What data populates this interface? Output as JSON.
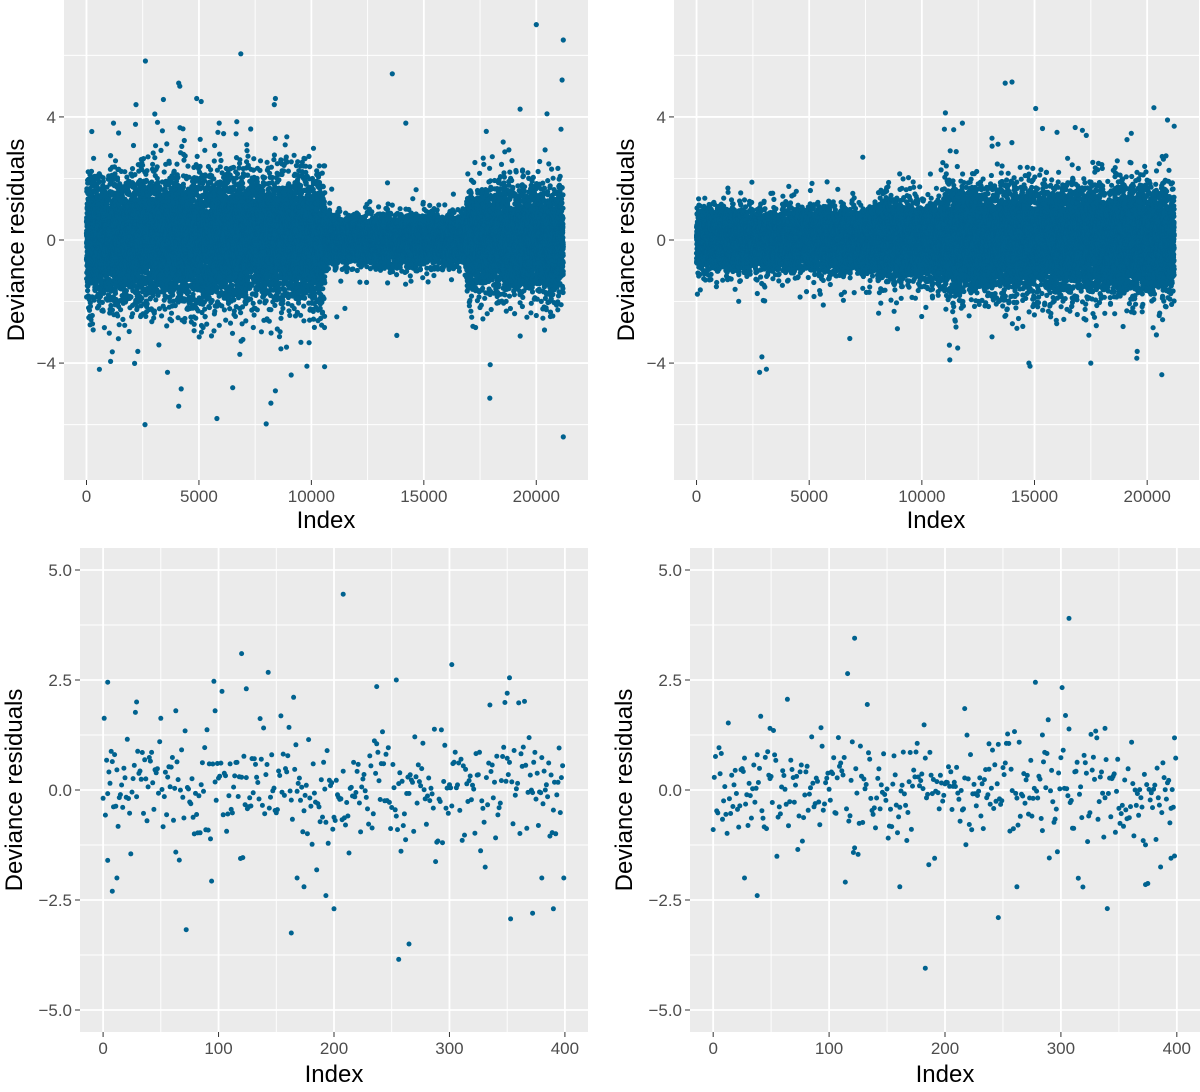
{
  "colors": {
    "panel_bg": "#ebebeb",
    "grid": "#ffffff",
    "points": "#00628f",
    "tick_text": "#4d4d4d"
  },
  "chart_data": [
    {
      "type": "scatter",
      "title": "",
      "xlabel": "Index",
      "ylabel": "Deviance residuals",
      "xlim": [
        -1000,
        22300
      ],
      "ylim": [
        -7.8,
        7.8
      ],
      "xticks": [
        0,
        5000,
        10000,
        15000,
        20000
      ],
      "xtick_labels": [
        "0",
        "5000",
        "10000",
        "15000",
        "20000"
      ],
      "yticks": [
        -4,
        0,
        4
      ],
      "ytick_labels": [
        "−4",
        "0",
        "4"
      ],
      "grid": true,
      "n_points": 21200,
      "spread_profile": [
        {
          "x_from": 0,
          "x_to": 10600,
          "core_sd": 0.95,
          "typical_range": [
            -3.5,
            3.5
          ]
        },
        {
          "x_from": 10600,
          "x_to": 16900,
          "core_sd": 0.35,
          "typical_range": [
            -1.5,
            1.5
          ]
        },
        {
          "x_from": 16900,
          "x_to": 21200,
          "core_sd": 0.8,
          "typical_range": [
            -3,
            3
          ]
        }
      ],
      "series": [
        {
          "x": [
            20000,
            21200,
            21150,
            13600,
            4100,
            4150,
            4900,
            8400,
            8350,
            2200,
            5100,
            5900,
            1200,
            14200,
            21100,
            2600,
            4100,
            5800,
            21200,
            8200,
            8400,
            13800,
            6500,
            9800,
            3600
          ],
          "y": [
            7.0,
            6.5,
            5.2,
            5.4,
            5.1,
            5.0,
            4.6,
            4.6,
            4.4,
            4.4,
            4.5,
            3.8,
            3.8,
            3.8,
            3.6,
            -6.0,
            -5.4,
            -5.8,
            -6.4,
            -5.3,
            -4.9,
            -3.1,
            -4.8,
            -4.1,
            -4.3
          ]
        }
      ]
    },
    {
      "type": "scatter",
      "title": "",
      "xlabel": "Index",
      "ylabel": "Deviance residuals",
      "xlim": [
        -1000,
        22300
      ],
      "ylim": [
        -7.8,
        7.8
      ],
      "xticks": [
        0,
        5000,
        10000,
        15000,
        20000
      ],
      "xtick_labels": [
        "0",
        "5000",
        "10000",
        "15000",
        "20000"
      ],
      "yticks": [
        -4,
        0,
        4
      ],
      "ytick_labels": [
        "−4",
        "0",
        "4"
      ],
      "grid": true,
      "n_points": 21200,
      "spread_profile": [
        {
          "x_from": 0,
          "x_to": 8000,
          "core_sd": 0.45,
          "typical_range": [
            -2,
            1.5
          ]
        },
        {
          "x_from": 8000,
          "x_to": 11000,
          "core_sd": 0.6,
          "typical_range": [
            -2.5,
            2
          ]
        },
        {
          "x_from": 11000,
          "x_to": 21200,
          "core_sd": 0.8,
          "typical_range": [
            -3.5,
            2.5
          ]
        }
      ],
      "series": [
        {
          "x": [
            13700,
            20300,
            11800,
            11000,
            16000,
            17300,
            20900,
            21200,
            2800,
            3100,
            2900,
            14800,
            14750,
            17500,
            6800
          ],
          "y": [
            5.1,
            4.3,
            3.8,
            3.6,
            3.5,
            3.4,
            3.9,
            3.7,
            -4.3,
            -4.2,
            -3.8,
            -4.1,
            -4.0,
            -4.0,
            -3.2
          ]
        }
      ]
    },
    {
      "type": "scatter",
      "title": "",
      "xlabel": "Index",
      "ylabel": "Deviance residuals",
      "xlim": [
        -20,
        420
      ],
      "ylim": [
        -5.5,
        5.5
      ],
      "xticks": [
        0,
        100,
        200,
        300,
        400
      ],
      "xtick_labels": [
        "0",
        "100",
        "200",
        "300",
        "400"
      ],
      "yticks": [
        -5,
        -2.5,
        0,
        2.5,
        5
      ],
      "ytick_labels": [
        "−5.0",
        "−2.5",
        "0.0",
        "2.5",
        "5.0"
      ],
      "grid": true,
      "n_points": 400,
      "series": [
        {
          "x": [
            208,
            120,
            302,
            352,
            124,
            4,
            254,
            237,
            350,
            29,
            63,
            97,
            8,
            163,
            256,
            265,
            200,
            193,
            372,
            168,
            174,
            390,
            12,
            4,
            380
          ],
          "y": [
            4.45,
            3.1,
            2.85,
            2.55,
            2.3,
            2.45,
            2.5,
            2.35,
            2.2,
            2.0,
            1.8,
            1.8,
            -2.3,
            -3.25,
            -3.85,
            -3.5,
            -2.7,
            -2.4,
            -2.8,
            -2.0,
            -2.2,
            -2.7,
            -2.0,
            -1.6,
            -2.0
          ]
        }
      ]
    },
    {
      "type": "scatter",
      "title": "",
      "xlabel": "Index",
      "ylabel": "Deviance residuals",
      "xlim": [
        -20,
        420
      ],
      "ylim": [
        -5.5,
        5.5
      ],
      "xticks": [
        0,
        100,
        200,
        300,
        400
      ],
      "xtick_labels": [
        "0",
        "100",
        "200",
        "300",
        "400"
      ],
      "yticks": [
        -5,
        -2.5,
        0,
        2.5,
        5
      ],
      "ytick_labels": [
        "−5.0",
        "−2.5",
        "0.0",
        "2.5",
        "5.0"
      ],
      "grid": true,
      "n_points": 400,
      "series": [
        {
          "x": [
            307,
            122,
            217,
            284,
            338,
            238,
            183,
            246,
            161,
            373,
            38,
            27,
            262,
            398,
            395,
            49
          ],
          "y": [
            3.9,
            3.45,
            1.85,
            1.25,
            1.4,
            1.05,
            -4.05,
            -2.9,
            -2.2,
            -2.15,
            -2.4,
            -2.0,
            -2.2,
            -1.5,
            -1.55,
            1.4
          ]
        }
      ]
    }
  ]
}
